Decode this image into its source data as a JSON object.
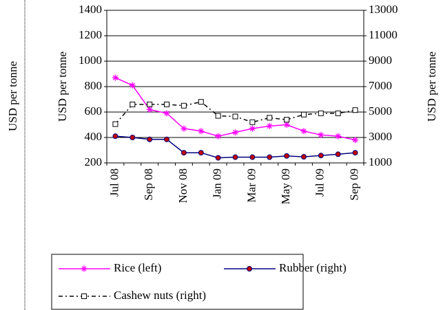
{
  "chart_data": {
    "type": "line",
    "side_label": "USD per tonne",
    "ylabel": "USD per tonne",
    "y2label": "USD per tonne",
    "categories": [
      "Jul 08",
      null,
      "Sep 08",
      null,
      "Nov 08",
      null,
      "Jan 09",
      null,
      "Mar 09",
      null,
      "May 09",
      null,
      "Jul 09",
      null,
      "Sep 09"
    ],
    "ylim": [
      200,
      1400
    ],
    "yticks": [
      200,
      400,
      600,
      800,
      1000,
      1200,
      1400
    ],
    "y2lim": [
      1000,
      13000
    ],
    "y2ticks": [
      1000,
      3000,
      5000,
      7000,
      9000,
      11000,
      13000
    ],
    "grid": true,
    "legend": "bottom",
    "series": [
      {
        "name": "Rice (left)",
        "color": "#ff00ff",
        "marker": "asterisk",
        "values": [
          870,
          810,
          620,
          590,
          470,
          450,
          410,
          440,
          470,
          490,
          500,
          450,
          420,
          410,
          380
        ]
      },
      {
        "name": "Rubber (right)",
        "color": "#000080",
        "marker": "circle",
        "axis": "y2",
        "values": [
          3100,
          3000,
          2850,
          2850,
          1800,
          1800,
          1400,
          1450,
          1450,
          1450,
          1550,
          1480,
          1580,
          1680,
          1800
        ]
      },
      {
        "name": "Cashew nuts (right)",
        "color": "#000000",
        "marker": "square",
        "dashed": true,
        "axis": "y2",
        "values": [
          4050,
          5600,
          5600,
          5600,
          5500,
          5800,
          4700,
          4650,
          4200,
          4550,
          4400,
          4800,
          4900,
          4900,
          5150
        ]
      }
    ]
  }
}
